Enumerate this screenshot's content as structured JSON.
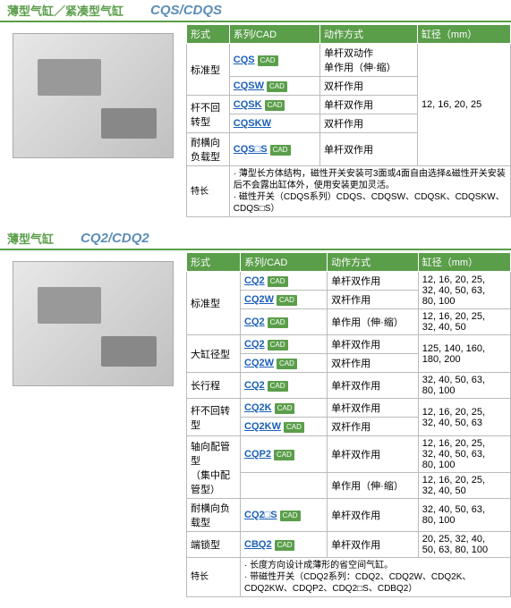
{
  "section1": {
    "title": "薄型气缸／紧凑型气缸",
    "model": "CQS/CDQS",
    "headers": [
      "形式",
      "系列/CAD",
      "动作方式",
      "缸径（mm）"
    ],
    "groups": [
      {
        "form": "标准型",
        "formRowspan": 2,
        "rows": [
          {
            "model": "CQS",
            "cad": true,
            "action": "单杆双动作\n单作用（伸·缩）"
          },
          {
            "model": "CQSW",
            "cad": true,
            "action": "双杆作用"
          }
        ]
      },
      {
        "form": "杆不回转型",
        "formRowspan": 2,
        "rows": [
          {
            "model": "CQSK",
            "cad": true,
            "action": "单杆双作用"
          },
          {
            "model": "CQSKW",
            "cad": false,
            "action": "双杆作用"
          }
        ]
      },
      {
        "form": "耐横向负载型",
        "formRowspan": 1,
        "rows": [
          {
            "model": "CQS□S",
            "cad": true,
            "action": "单杆双作用"
          }
        ]
      }
    ],
    "bore": "12, 16, 20, 25",
    "featLabel": "特长",
    "featText": "· 薄型长方体结构，磁性开关安装可3面或4面自由选择&磁性开关安装后不会露出缸体外，使用安装更加灵活。\n· 磁性开关（CDQS系列）CDQS、CDQSW、CDQSK、CDQSKW、CDQS□S）"
  },
  "section2": {
    "title": "薄型气缸",
    "model": "CQ2/CDQ2",
    "headers": [
      "形式",
      "系列/CAD",
      "动作方式",
      "缸径（mm）"
    ],
    "groups": [
      {
        "form": "标准型",
        "formRowspan": 3,
        "rows": [
          {
            "model": "CQ2",
            "cad": true,
            "action": "单杆双作用",
            "bore": "12, 16, 20, 25,\n32, 40, 50, 63,\n80, 100"
          },
          {
            "model": "CQ2W",
            "cad": true,
            "action": "双杆作用",
            "bore": ""
          },
          {
            "model": "CQ2",
            "cad": true,
            "action": "单作用（伸·缩）",
            "bore": "12, 16, 20, 25,\n32, 40, 50"
          }
        ]
      },
      {
        "form": "大缸径型",
        "formRowspan": 2,
        "rows": [
          {
            "model": "CQ2",
            "cad": true,
            "action": "单杆双作用",
            "bore": "125, 140, 160,\n180, 200"
          },
          {
            "model": "CQ2W",
            "cad": true,
            "action": "双杆作用",
            "bore": ""
          }
        ]
      },
      {
        "form": "长行程",
        "formRowspan": 1,
        "rows": [
          {
            "model": "CQ2",
            "cad": true,
            "action": "单杆双作用",
            "bore": "32, 40, 50, 63,\n80, 100"
          }
        ]
      },
      {
        "form": "杆不回转型",
        "formRowspan": 2,
        "rows": [
          {
            "model": "CQ2K",
            "cad": true,
            "action": "单杆双作用",
            "bore": "12, 16, 20, 25,\n32, 40, 50, 63"
          },
          {
            "model": "CQ2KW",
            "cad": true,
            "action": "双杆作用",
            "bore": ""
          }
        ]
      },
      {
        "form": "轴向配管型\n（集中配管型）",
        "formRowspan": 2,
        "rows": [
          {
            "model": "CQP2",
            "cad": true,
            "action": "单杆双作用",
            "bore": "12, 16, 20, 25,\n32, 40, 50, 63,\n80, 100"
          },
          {
            "model": "",
            "cad": false,
            "action": "单作用（伸·缩）",
            "bore": "12, 16, 20, 25,\n32, 40, 50"
          }
        ]
      },
      {
        "form": "耐横向负载型",
        "formRowspan": 1,
        "rows": [
          {
            "model": "CQ2□S",
            "cad": true,
            "action": "单杆双作用",
            "bore": "32, 40, 50, 63,\n80, 100"
          }
        ]
      },
      {
        "form": "端锁型",
        "formRowspan": 1,
        "rows": [
          {
            "model": "CBQ2",
            "cad": true,
            "action": "单杆双作用",
            "bore": "20, 25, 32, 40,\n50, 63, 80, 100"
          }
        ]
      }
    ],
    "featLabel": "特长",
    "featText": "· 长度方向设计成薄形的省空间气缸。\n· 带磁性开关（CDQ2系列：CDQ2、CDQ2W、CDQ2K、CDQ2KW、CDQP2、CDQ2□S、CDBQ2）"
  },
  "cadLabel": "CAD"
}
